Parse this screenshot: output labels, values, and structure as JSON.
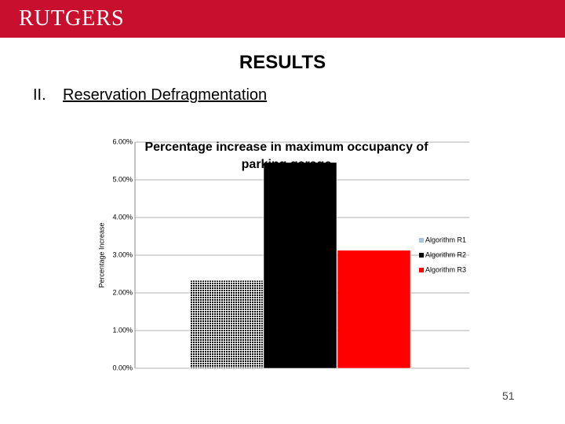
{
  "header": {
    "logo": "RUTGERS",
    "heading": "RESULTS",
    "item_number": "II.",
    "item_text": "Reservation Defragmentation"
  },
  "chart_data": {
    "type": "bar",
    "title": "Percentage increase in maximum occupancy of parking garage",
    "y_label": "Percentage Increase",
    "series": [
      {
        "name": "Algorithm R1",
        "color": "#a9c3df",
        "values": [
          2.33
        ]
      },
      {
        "name": "Algorithm R2",
        "color": "#000000",
        "values": [
          5.46
        ]
      },
      {
        "name": "Algorithm R3",
        "color": "#ff0000",
        "values": [
          3.13
        ]
      }
    ],
    "ylim": [
      0,
      6
    ],
    "yticks": [
      {
        "value": 0,
        "label": "0.00%"
      },
      {
        "value": 1,
        "label": "1.00%"
      },
      {
        "value": 2,
        "label": "2.00%"
      },
      {
        "value": 3,
        "label": "3.00%"
      },
      {
        "value": 4,
        "label": "4.00%"
      },
      {
        "value": 5,
        "label": "5.00%"
      },
      {
        "value": 6,
        "label": "6.00%"
      }
    ],
    "grid": true,
    "legend": "right"
  },
  "page_number": "51"
}
